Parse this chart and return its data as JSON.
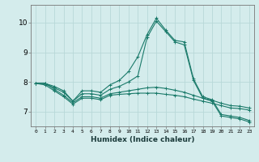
{
  "xlabel": "Humidex (Indice chaleur)",
  "bg_color": "#d4ecec",
  "grid_color": "#b8d8d8",
  "line_color": "#1a7a6a",
  "x_ticks": [
    0,
    1,
    2,
    3,
    4,
    5,
    6,
    7,
    8,
    9,
    10,
    11,
    12,
    13,
    14,
    15,
    16,
    17,
    18,
    19,
    20,
    21,
    22,
    23
  ],
  "xlim": [
    -0.5,
    23.5
  ],
  "ylim": [
    6.5,
    10.6
  ],
  "yticks": [
    7,
    8,
    9,
    10
  ],
  "series": [
    [
      7.95,
      7.95,
      7.85,
      7.7,
      7.35,
      7.7,
      7.7,
      7.65,
      7.9,
      8.05,
      8.35,
      8.85,
      9.6,
      10.15,
      9.75,
      9.4,
      9.35,
      8.1,
      7.5,
      7.4,
      6.9,
      6.85,
      6.8,
      6.7
    ],
    [
      7.95,
      7.95,
      7.8,
      7.65,
      7.35,
      7.6,
      7.6,
      7.55,
      7.75,
      7.85,
      8.0,
      8.2,
      9.5,
      10.05,
      9.7,
      9.35,
      9.25,
      8.05,
      7.45,
      7.35,
      6.85,
      6.8,
      6.75,
      6.65
    ],
    [
      7.95,
      7.95,
      7.75,
      7.55,
      7.3,
      7.5,
      7.5,
      7.45,
      7.6,
      7.65,
      7.7,
      7.75,
      7.8,
      7.82,
      7.78,
      7.72,
      7.65,
      7.55,
      7.45,
      7.38,
      7.28,
      7.2,
      7.18,
      7.12
    ],
    [
      7.95,
      7.9,
      7.7,
      7.5,
      7.25,
      7.45,
      7.45,
      7.4,
      7.55,
      7.58,
      7.6,
      7.62,
      7.62,
      7.62,
      7.58,
      7.55,
      7.5,
      7.42,
      7.35,
      7.28,
      7.2,
      7.12,
      7.1,
      7.05
    ]
  ]
}
